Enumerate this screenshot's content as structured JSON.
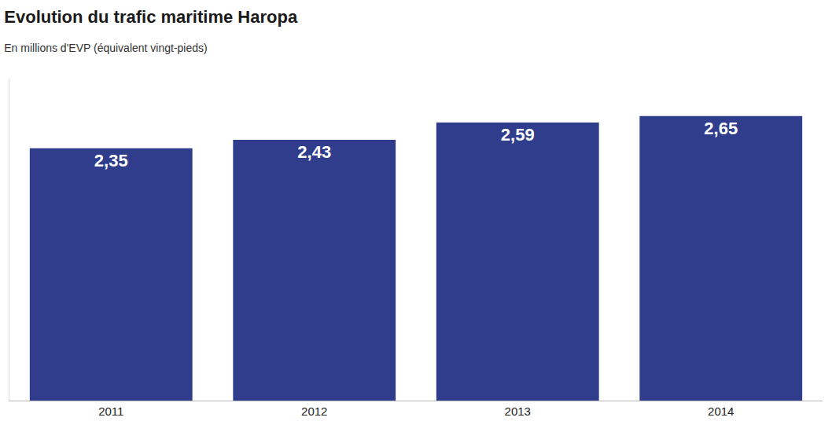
{
  "chart_data": {
    "type": "bar",
    "title": "Evolution du trafic maritime Haropa",
    "subtitle": "En millions d'EVP (équivalent vingt-pieds)",
    "categories": [
      "2011",
      "2012",
      "2013",
      "2014"
    ],
    "values": [
      2.35,
      2.43,
      2.59,
      2.65
    ],
    "value_labels": [
      "2,35",
      "2,43",
      "2,59",
      "2,65"
    ],
    "color": "#2f3d8c",
    "ylim": [
      0,
      3
    ],
    "data_labels": true,
    "tick_labels": "x",
    "grid": false
  }
}
